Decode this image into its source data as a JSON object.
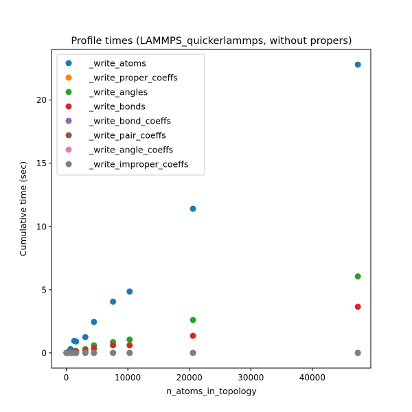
{
  "chart_data": {
    "type": "scatter",
    "title": "Profile times (LAMMPS_quickerlammps, without propers)",
    "xlabel": "n_atoms_in_topology",
    "ylabel": "Cumulative time (sec)",
    "xlim": [
      -2400,
      49500
    ],
    "ylim": [
      -1.2,
      24.0
    ],
    "xticks": [
      0,
      10000,
      20000,
      30000,
      40000
    ],
    "yticks": [
      0,
      5,
      10,
      15,
      20
    ],
    "grid": false,
    "legend_position": "upper-left",
    "x": [
      30,
      100,
      200,
      400,
      700,
      1300,
      1600,
      3100,
      4500,
      7600,
      10300,
      20600,
      47400
    ],
    "series": [
      {
        "name": "_write_atoms",
        "color": "#1f77b4",
        "values": [
          0.01,
          0.02,
          0.05,
          0.1,
          0.3,
          0.95,
          0.9,
          1.25,
          2.45,
          4.05,
          4.85,
          11.4,
          22.8
        ]
      },
      {
        "name": "_write_proper_coeffs",
        "color": "#ff7f0e",
        "values": [
          0,
          0,
          0,
          0,
          0,
          0,
          0,
          0,
          0,
          0,
          0,
          0,
          0
        ]
      },
      {
        "name": "_write_angles",
        "color": "#2ca02c",
        "values": [
          0.005,
          0.01,
          0.02,
          0.05,
          0.1,
          0.15,
          0.15,
          0.3,
          0.6,
          0.85,
          1.05,
          2.6,
          6.05
        ]
      },
      {
        "name": "_write_bonds",
        "color": "#d62728",
        "values": [
          0.004,
          0.008,
          0.015,
          0.04,
          0.07,
          0.1,
          0.1,
          0.18,
          0.35,
          0.6,
          0.6,
          1.35,
          3.65
        ]
      },
      {
        "name": "_write_bond_coeffs",
        "color": "#9467bd",
        "values": [
          0,
          0,
          0,
          0,
          0,
          0,
          0,
          0,
          0,
          0,
          0,
          0,
          0
        ]
      },
      {
        "name": "_write_pair_coeffs",
        "color": "#8c564b",
        "values": [
          0,
          0,
          0,
          0,
          0,
          0,
          0,
          0,
          0,
          0,
          0,
          0,
          0
        ]
      },
      {
        "name": "_write_angle_coeffs",
        "color": "#e377c2",
        "values": [
          0,
          0,
          0,
          0,
          0,
          0,
          0,
          0,
          0,
          0,
          0,
          0,
          0
        ]
      },
      {
        "name": "_write_improper_coeffs",
        "color": "#7f7f7f",
        "values": [
          0,
          0,
          0,
          0,
          0,
          0,
          0,
          0,
          0,
          0,
          0,
          0,
          0
        ]
      }
    ]
  }
}
